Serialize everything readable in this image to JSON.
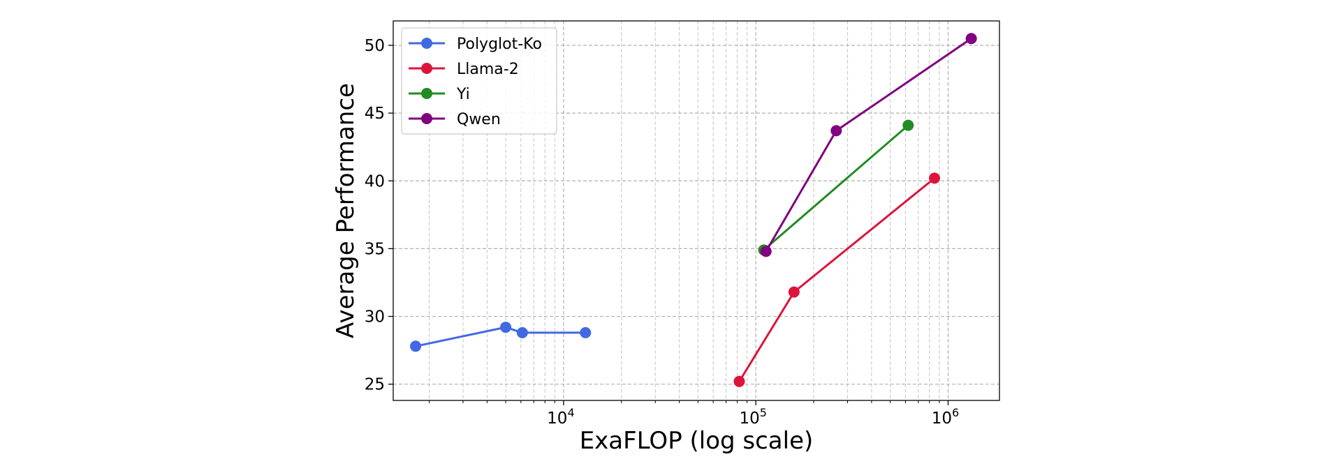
{
  "chart_data": {
    "type": "line",
    "title": "",
    "xlabel": "ExaFLOP (log scale)",
    "ylabel": "Average Performance",
    "xscale": "log",
    "xlim": [
      1300,
      1850000
    ],
    "ylim": [
      23.8,
      51.8
    ],
    "xticks": [
      {
        "value": 10000,
        "base": "10",
        "exp": "4"
      },
      {
        "value": 100000,
        "base": "10",
        "exp": "5"
      },
      {
        "value": 1000000,
        "base": "10",
        "exp": "6"
      }
    ],
    "yticks": [
      25,
      30,
      35,
      40,
      45,
      50
    ],
    "grid": true,
    "legend_position": "top-left",
    "series": [
      {
        "name": "Polyglot-Ko",
        "color": "#4169e1",
        "x": [
          1700,
          5000,
          6100,
          13000
        ],
        "y": [
          27.8,
          29.2,
          28.8,
          28.8
        ]
      },
      {
        "name": "Llama-2",
        "color": "#dc143c",
        "x": [
          82000,
          158000,
          850000
        ],
        "y": [
          25.2,
          31.8,
          40.2
        ]
      },
      {
        "name": "Yi",
        "color": "#228b22",
        "x": [
          110000,
          620000
        ],
        "y": [
          34.9,
          44.1
        ]
      },
      {
        "name": "Qwen",
        "color": "#800080",
        "x": [
          113000,
          262000,
          1320000
        ],
        "y": [
          34.8,
          43.7,
          50.5
        ]
      }
    ]
  }
}
